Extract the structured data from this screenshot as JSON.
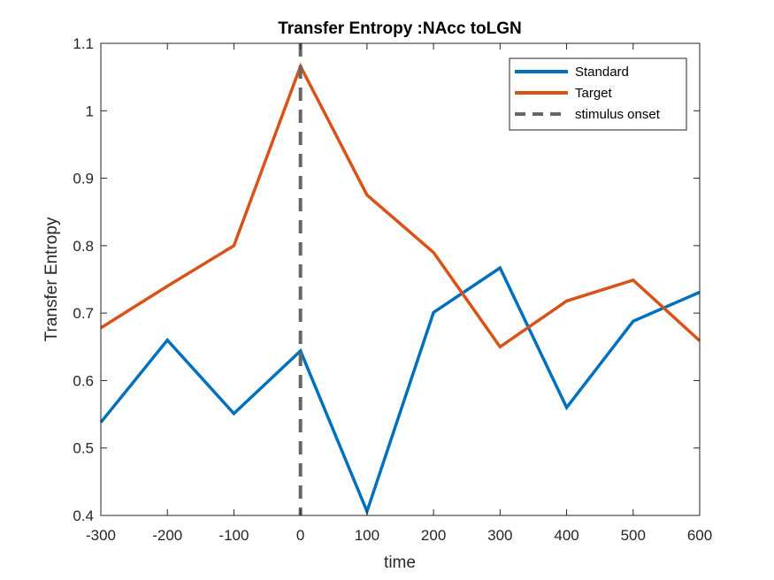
{
  "chart_data": {
    "type": "line",
    "title": "Transfer Entropy :NAcc toLGN",
    "xlabel": "time",
    "ylabel": "Transfer Entropy",
    "xlim": [
      -300,
      600
    ],
    "ylim": [
      0.4,
      1.1
    ],
    "xticks": [
      -300,
      -200,
      -100,
      0,
      100,
      200,
      300,
      400,
      500,
      600
    ],
    "yticks": [
      0.4,
      0.5,
      0.6,
      0.7,
      0.8,
      0.9,
      1,
      1.1
    ],
    "x": [
      -300,
      -200,
      -100,
      0,
      100,
      200,
      300,
      400,
      500,
      600
    ],
    "series": [
      {
        "name": "Standard",
        "color": "#0072BD",
        "values": [
          0.538,
          0.66,
          0.551,
          0.644,
          0.406,
          0.701,
          0.767,
          0.56,
          0.688,
          0.731
        ]
      },
      {
        "name": "Target",
        "color": "#D95319",
        "values": [
          0.678,
          0.74,
          0.8,
          1.066,
          0.875,
          0.79,
          0.65,
          0.718,
          0.749,
          0.659
        ]
      }
    ],
    "vline": {
      "name": "stimulus onset",
      "x": 0,
      "color": "#666666",
      "style": "dashed"
    },
    "legend_position": "top-right",
    "grid": false
  }
}
